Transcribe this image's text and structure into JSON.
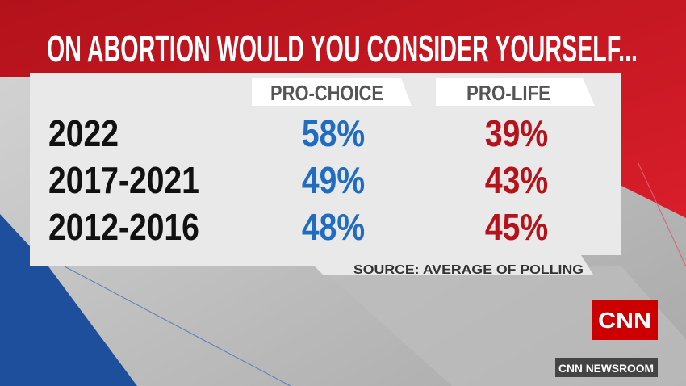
{
  "header": {
    "title": "ON ABORTION WOULD YOU CONSIDER YOURSELF..."
  },
  "table": {
    "columns": [
      "PRO-CHOICE",
      "PRO-LIFE"
    ],
    "rows": [
      {
        "label": "2022",
        "values": [
          "58%",
          "39%"
        ]
      },
      {
        "label": "2017-2021",
        "values": [
          "49%",
          "43%"
        ]
      },
      {
        "label": "2012-2016",
        "values": [
          "48%",
          "45%"
        ]
      }
    ]
  },
  "source": "SOURCE: AVERAGE OF POLLING",
  "logo": "CNN",
  "program": "CNN NEWSROOM"
}
